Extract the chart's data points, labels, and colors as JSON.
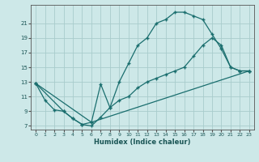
{
  "xlabel": "Humidex (Indice chaleur)",
  "bg_color": "#cde8e8",
  "grid_color": "#a8cccc",
  "line_color": "#1a6e6e",
  "xlim": [
    -0.5,
    23.5
  ],
  "ylim": [
    6.5,
    23.5
  ],
  "xticks": [
    0,
    1,
    2,
    3,
    4,
    5,
    6,
    7,
    8,
    9,
    10,
    11,
    12,
    13,
    14,
    15,
    16,
    17,
    18,
    19,
    20,
    21,
    22,
    23
  ],
  "yticks": [
    7,
    9,
    11,
    13,
    15,
    17,
    19,
    21
  ],
  "line1_x": [
    0,
    1,
    2,
    3,
    4,
    5,
    6,
    7,
    8,
    9,
    10,
    11,
    12,
    13,
    14,
    15,
    16,
    17,
    18,
    19,
    20,
    21,
    22,
    23
  ],
  "line1_y": [
    12.8,
    10.5,
    9.2,
    9.0,
    8.0,
    7.2,
    7.0,
    8.2,
    9.5,
    13.0,
    15.5,
    18.0,
    19.0,
    21.0,
    21.5,
    22.5,
    22.5,
    22.0,
    21.5,
    19.5,
    17.5,
    15.0,
    14.5,
    14.5
  ],
  "line2_x": [
    0,
    3,
    4,
    5,
    6,
    7,
    8,
    9,
    10,
    11,
    12,
    13,
    14,
    15,
    16,
    17,
    18,
    19,
    20,
    21,
    22,
    23
  ],
  "line2_y": [
    12.8,
    9.0,
    8.0,
    7.2,
    7.5,
    12.7,
    9.5,
    10.5,
    11.0,
    12.2,
    13.0,
    13.5,
    14.0,
    14.5,
    15.0,
    16.5,
    18.0,
    19.0,
    18.0,
    15.0,
    14.5,
    14.5
  ],
  "line3_x": [
    0,
    6,
    23
  ],
  "line3_y": [
    12.8,
    7.5,
    14.5
  ],
  "xlabel_fontsize": 6,
  "tick_fontsize": 4.5
}
